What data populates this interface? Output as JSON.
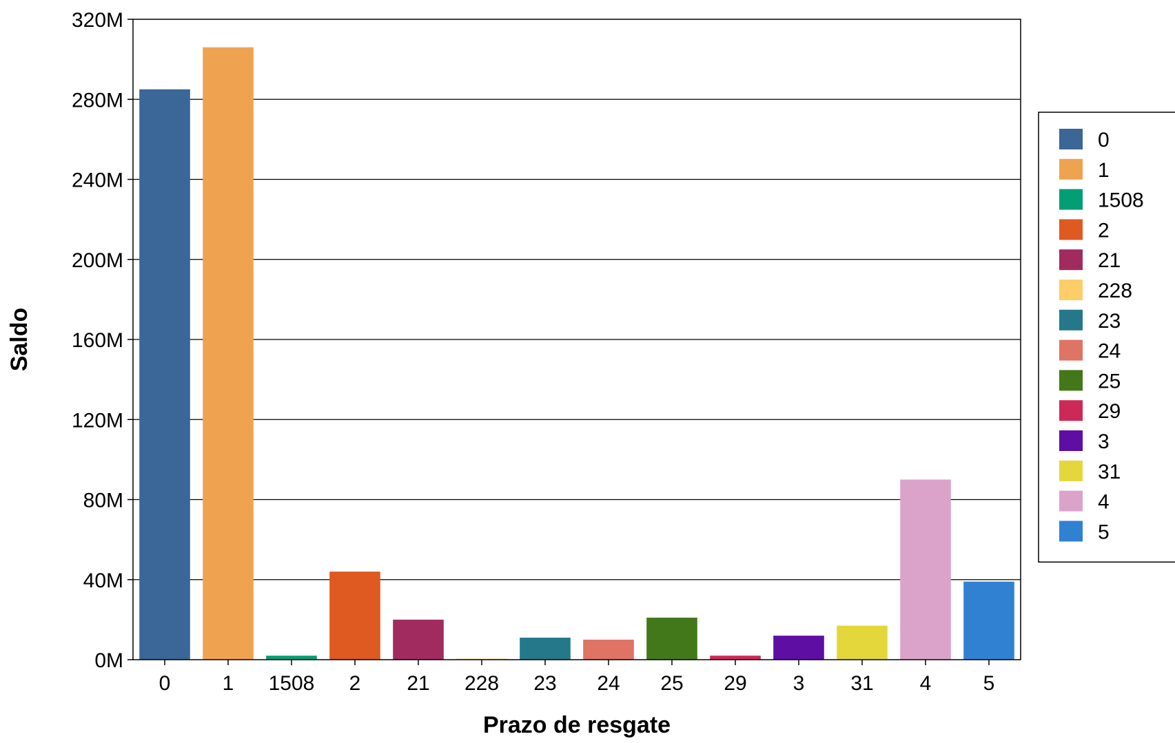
{
  "chart_data": {
    "type": "bar",
    "title": "",
    "xlabel": "Prazo de resgate",
    "ylabel": "Saldo",
    "categories": [
      "0",
      "1",
      "1508",
      "2",
      "21",
      "228",
      "23",
      "24",
      "25",
      "29",
      "3",
      "31",
      "4",
      "5"
    ],
    "values": [
      285000000,
      306000000,
      2000000,
      44000000,
      20000000,
      500000,
      11000000,
      10000000,
      21000000,
      2000000,
      12000000,
      17000000,
      90000000,
      39000000
    ],
    "colors": [
      "#3a6698",
      "#efa351",
      "#039e74",
      "#de5a20",
      "#a12b5f",
      "#fdcd68",
      "#24788a",
      "#df7364",
      "#427819",
      "#cc2958",
      "#5f0ea4",
      "#e3d73c",
      "#dba3c9",
      "#3181d2"
    ],
    "ylim": [
      0,
      320000000
    ],
    "yticks": [
      0,
      40000000,
      80000000,
      120000000,
      160000000,
      200000000,
      240000000,
      280000000,
      320000000
    ],
    "ytick_labels": [
      "0M",
      "40M",
      "80M",
      "120M",
      "160M",
      "200M",
      "240M",
      "280M",
      "320M"
    ],
    "grid": "horizontal",
    "legend_position": "right",
    "legend": [
      "0",
      "1",
      "1508",
      "2",
      "21",
      "228",
      "23",
      "24",
      "25",
      "29",
      "3",
      "31",
      "4",
      "5"
    ]
  }
}
